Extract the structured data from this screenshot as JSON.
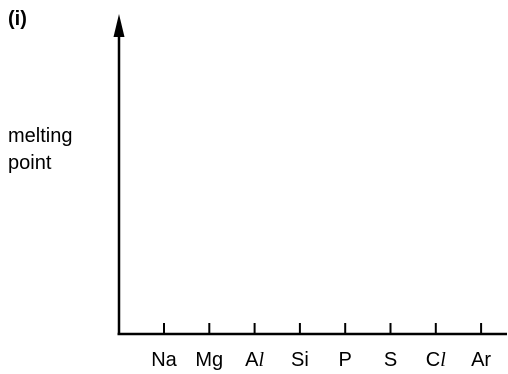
{
  "part_label": "(i)",
  "y_axis_label": [
    "melting",
    "point"
  ],
  "x_axis": {
    "categories": [
      {
        "main": "Na",
        "italic": ""
      },
      {
        "main": "Mg",
        "italic": ""
      },
      {
        "main": "A",
        "italic": "l"
      },
      {
        "main": "Si",
        "italic": ""
      },
      {
        "main": "P",
        "italic": ""
      },
      {
        "main": "S",
        "italic": ""
      },
      {
        "main": "C",
        "italic": "l"
      },
      {
        "main": "Ar",
        "italic": ""
      }
    ]
  },
  "colors": {
    "ink": "#000000",
    "background": "#ffffff"
  }
}
